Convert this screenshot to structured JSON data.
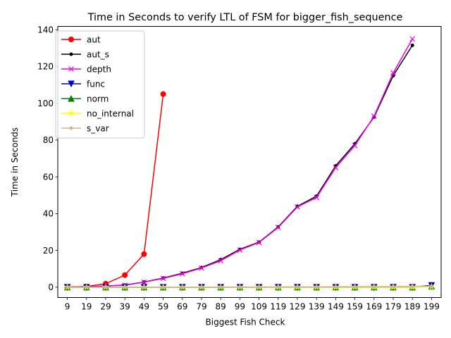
{
  "chart_data": {
    "type": "line",
    "title": "Time in Seconds to verify LTL of FSM for bigger_fish_sequence",
    "xlabel": "Biggest Fish Check",
    "ylabel": "Time in Seconds",
    "categories": [
      "9",
      "19",
      "29",
      "39",
      "49",
      "59",
      "69",
      "79",
      "89",
      "99",
      "109",
      "119",
      "129",
      "139",
      "149",
      "159",
      "169",
      "179",
      "189",
      "199"
    ],
    "ylim": [
      -5.6,
      141.8
    ],
    "yticks": [
      0,
      20,
      40,
      60,
      80,
      100,
      120,
      140
    ],
    "legend_position": "upper-left",
    "grid": false,
    "series": [
      {
        "name": "aut",
        "color": "#ff0000",
        "marker": "circle",
        "values": [
          0.1,
          0.4,
          1.9,
          6.6,
          18,
          105,
          null,
          null,
          null,
          null,
          null,
          null,
          null,
          null,
          null,
          null,
          null,
          null,
          null,
          null
        ]
      },
      {
        "name": "aut_s",
        "color": "#000000",
        "marker": "point",
        "values": [
          0.1,
          0.2,
          0.6,
          1.2,
          2.8,
          5,
          7.6,
          10.7,
          15,
          20.6,
          24.5,
          32.8,
          44,
          49.5,
          66,
          78,
          92.5,
          115,
          131.5,
          null
        ]
      },
      {
        "name": "depth",
        "color": "#ee00ee",
        "marker": "x",
        "values": [
          0.1,
          0.2,
          0.6,
          1.1,
          2.7,
          4.8,
          7.3,
          10.4,
          14.4,
          20.2,
          24.3,
          32.5,
          43.6,
          48.8,
          65,
          77,
          93,
          116.5,
          135,
          null
        ]
      },
      {
        "name": "func",
        "color": "#0000cc",
        "marker": "triangle-down",
        "values": [
          0,
          0,
          0,
          0,
          0,
          0,
          0,
          0,
          0,
          0,
          0,
          0,
          0,
          0,
          0,
          0,
          0,
          0,
          0,
          1
        ]
      },
      {
        "name": "norm",
        "color": "#008000",
        "marker": "triangle-up",
        "values": [
          0,
          0,
          0,
          0,
          0,
          0,
          0,
          0,
          0,
          0,
          0,
          0,
          0,
          0,
          0,
          0,
          0,
          0,
          0,
          0.5
        ]
      },
      {
        "name": "no_internal",
        "color": "#ffff00",
        "marker": "star",
        "values": [
          0,
          0,
          0,
          0,
          0,
          0,
          0,
          0,
          0,
          0,
          0,
          0,
          0,
          0,
          0,
          0,
          0,
          0,
          0,
          0.3
        ]
      },
      {
        "name": "s_var",
        "color": "#d2b48c",
        "marker": "point",
        "values": [
          0,
          0,
          0,
          0,
          0,
          0,
          0,
          0,
          0.1,
          0.1,
          0.1,
          0.2,
          0.2,
          0.2,
          0.3,
          0.3,
          0.4,
          0.4,
          0.5,
          0.5
        ]
      }
    ]
  }
}
